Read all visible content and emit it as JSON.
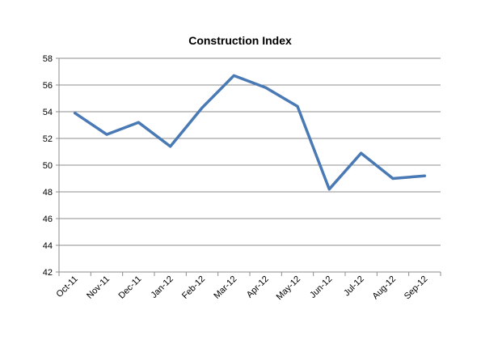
{
  "chart_data": {
    "type": "line",
    "title": "Construction Index",
    "xlabel": "",
    "ylabel": "",
    "categories": [
      "Oct-11",
      "Nov-11",
      "Dec-11",
      "Jan-12",
      "Feb-12",
      "Mar-12",
      "Apr-12",
      "May-12",
      "Jun-12",
      "Jul-12",
      "Aug-12",
      "Sep-12"
    ],
    "series": [
      {
        "values": [
          53.9,
          52.3,
          53.2,
          51.4,
          54.3,
          56.7,
          55.8,
          54.4,
          48.2,
          50.9,
          49.0,
          49.2
        ],
        "color": "#4a7ab5"
      }
    ],
    "ylim": [
      42,
      58
    ],
    "yticks": [
      42,
      44,
      46,
      48,
      50,
      52,
      54,
      56,
      58
    ],
    "grid": true,
    "legend": "none"
  }
}
